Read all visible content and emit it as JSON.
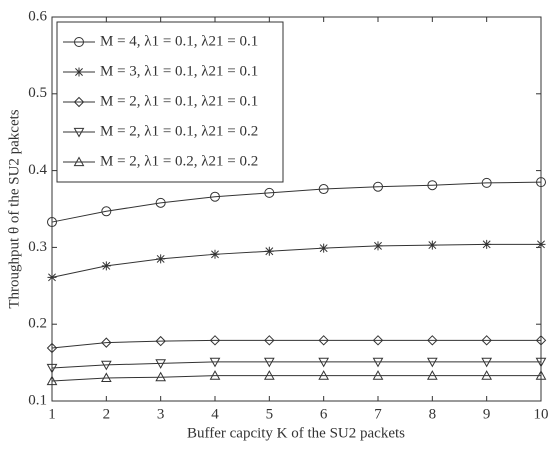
{
  "chart_data": {
    "type": "line",
    "x": [
      1,
      2,
      3,
      4,
      5,
      6,
      7,
      8,
      9,
      10
    ],
    "xlabel": "Buffer capcity K of the SU2 packets",
    "ylabel": "Throughput θ of the SU2 pakcets",
    "xlim": [
      1,
      10
    ],
    "xticks": [
      1,
      2,
      3,
      4,
      5,
      6,
      7,
      8,
      9,
      10
    ],
    "ylim": [
      0.1,
      0.6
    ],
    "yticks": [
      0.1,
      0.2,
      0.3,
      0.4,
      0.5,
      0.6
    ],
    "legend": "upper-left",
    "grid": false,
    "series": [
      {
        "name": "M = 4, λ1 = 0.1, λ21 = 0.1",
        "color": "#333333",
        "marker": "o",
        "values": [
          0.333,
          0.347,
          0.358,
          0.366,
          0.371,
          0.376,
          0.379,
          0.381,
          0.384,
          0.385
        ]
      },
      {
        "name": "M = 3, λ1 = 0.1, λ21 = 0.1",
        "color": "#333333",
        "marker": "*",
        "values": [
          0.261,
          0.276,
          0.285,
          0.291,
          0.295,
          0.299,
          0.302,
          0.303,
          0.304,
          0.304
        ]
      },
      {
        "name": "M = 2, λ1 = 0.1, λ21 = 0.1",
        "color": "#333333",
        "marker": "d",
        "values": [
          0.169,
          0.176,
          0.178,
          0.179,
          0.179,
          0.179,
          0.179,
          0.179,
          0.179,
          0.179
        ]
      },
      {
        "name": "M = 2, λ1 = 0.1, λ21 = 0.2",
        "color": "#333333",
        "marker": "v",
        "values": [
          0.143,
          0.147,
          0.149,
          0.151,
          0.151,
          0.151,
          0.151,
          0.151,
          0.151,
          0.151
        ]
      },
      {
        "name": "M = 2, λ1 = 0.2, λ21 = 0.2",
        "color": "#333333",
        "marker": "^",
        "values": [
          0.126,
          0.13,
          0.131,
          0.133,
          0.133,
          0.133,
          0.133,
          0.133,
          0.133,
          0.133
        ]
      }
    ]
  }
}
